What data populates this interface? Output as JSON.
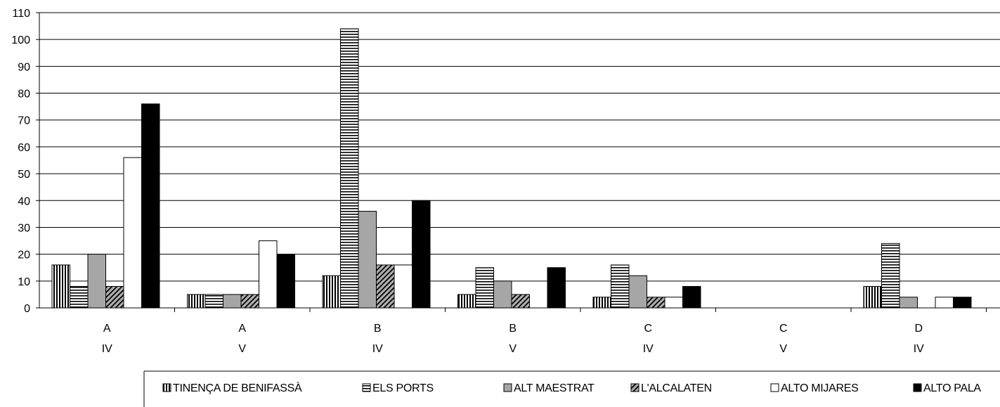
{
  "chart_data": {
    "type": "bar",
    "title": "",
    "xlabel": "",
    "ylabel": "",
    "ylim": [
      0,
      110
    ],
    "yticks": [
      0,
      10,
      20,
      30,
      40,
      50,
      60,
      70,
      80,
      90,
      100,
      110
    ],
    "grid": true,
    "legend_position": "bottom",
    "categories": [
      [
        "A",
        "IV"
      ],
      [
        "A",
        "V"
      ],
      [
        "B",
        "IV"
      ],
      [
        "B",
        "V"
      ],
      [
        "C",
        "IV"
      ],
      [
        "C",
        "V"
      ],
      [
        "D",
        "IV"
      ]
    ],
    "series": [
      {
        "name": "TINENÇA DE BENIFASSÀ",
        "pattern": "vertical-stripes",
        "values": [
          16,
          5,
          12,
          5,
          4,
          0,
          8
        ]
      },
      {
        "name": "ELS PORTS",
        "pattern": "horizontal-stripes",
        "values": [
          8,
          5,
          104,
          15,
          16,
          0,
          24
        ]
      },
      {
        "name": "ALT MAESTRAT",
        "pattern": "gray",
        "color": "#a6a6a6",
        "values": [
          20,
          5,
          36,
          10,
          12,
          0,
          4
        ]
      },
      {
        "name": "L'ALCALATEN",
        "pattern": "diagonal-stripes",
        "values": [
          8,
          5,
          16,
          5,
          4,
          0,
          0
        ]
      },
      {
        "name": "ALTO MIJARES",
        "pattern": "white",
        "color": "#ffffff",
        "values": [
          56,
          25,
          16,
          0,
          4,
          0,
          4
        ]
      },
      {
        "name": "ALTO PALA",
        "pattern": "black",
        "color": "#000000",
        "values": [
          76,
          20,
          40,
          15,
          8,
          0,
          4
        ]
      }
    ]
  }
}
